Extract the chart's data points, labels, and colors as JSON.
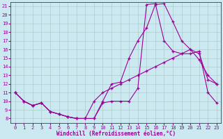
{
  "xlabel": "Windchill (Refroidissement éolien,°C)",
  "background_color": "#cce8f0",
  "grid_color": "#aacccc",
  "line_color": "#990099",
  "x_ticks": [
    0,
    1,
    2,
    3,
    4,
    5,
    6,
    7,
    8,
    9,
    10,
    11,
    12,
    13,
    14,
    15,
    16,
    17,
    18,
    19,
    20,
    21,
    22,
    23
  ],
  "y_ticks": [
    8,
    9,
    10,
    11,
    12,
    13,
    14,
    15,
    16,
    17,
    18,
    19,
    20,
    21
  ],
  "ylim": [
    7.5,
    21.5
  ],
  "xlim": [
    -0.5,
    23.5
  ],
  "hours": [
    0,
    1,
    2,
    3,
    4,
    5,
    6,
    7,
    8,
    9,
    10,
    11,
    12,
    13,
    14,
    15,
    16,
    17,
    18,
    19,
    20,
    21,
    22,
    23
  ],
  "line1": [
    11.0,
    10.0,
    9.5,
    9.8,
    8.8,
    8.5,
    8.2,
    8.0,
    8.0,
    8.0,
    10.0,
    12.0,
    12.2,
    15.0,
    17.0,
    18.5,
    21.2,
    21.3,
    19.2,
    17.0,
    16.0,
    14.8,
    13.0,
    12.0
  ],
  "line2": [
    11.0,
    10.0,
    9.5,
    9.8,
    8.8,
    8.5,
    8.2,
    8.0,
    8.0,
    8.0,
    9.8,
    10.0,
    10.0,
    10.0,
    11.5,
    21.2,
    21.3,
    17.0,
    15.8,
    15.5,
    15.5,
    15.8,
    11.0,
    9.8
  ],
  "line3": [
    11.0,
    10.0,
    9.5,
    9.8,
    8.8,
    8.5,
    8.2,
    8.0,
    8.0,
    10.0,
    11.0,
    11.5,
    12.0,
    12.5,
    13.0,
    13.5,
    14.0,
    14.5,
    15.0,
    15.5,
    16.0,
    15.5,
    12.5,
    12.0
  ],
  "tick_fontsize": 5,
  "xlabel_fontsize": 5.5
}
